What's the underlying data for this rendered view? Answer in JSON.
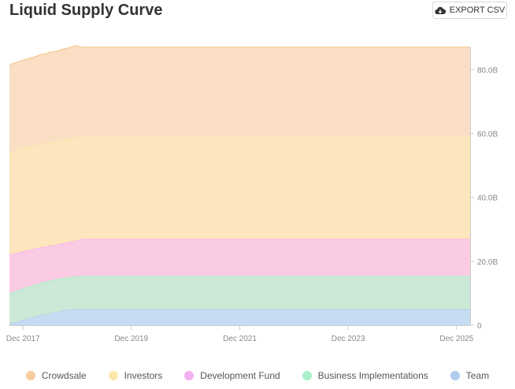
{
  "header": {
    "title": "Liquid Supply Curve",
    "export_label": "EXPORT CSV",
    "export_icon": "cloud-download-icon"
  },
  "chart_data": {
    "type": "area",
    "stacked": true,
    "title": "Liquid Supply Curve",
    "x_unit": "months since 2017-09",
    "x": [
      0,
      1,
      2,
      3,
      4,
      5,
      6,
      7,
      8,
      9,
      10,
      11,
      12,
      13,
      14,
      15,
      16,
      17,
      18,
      19,
      20,
      22,
      24,
      36,
      48,
      60,
      72,
      84,
      96,
      102
    ],
    "x_tick_labels": [
      "Dec 2017",
      "Dec 2019",
      "Dec 2021",
      "Dec 2023",
      "Dec 2025"
    ],
    "x_tick_positions": [
      3,
      27,
      51,
      75,
      99
    ],
    "xlim": [
      0,
      102
    ],
    "ylim": [
      0,
      87
    ],
    "y_ticks": [
      0,
      20,
      40,
      60,
      80
    ],
    "y_tick_labels": [
      "0",
      "20.0B",
      "40.0B",
      "60.0B",
      "80.0B"
    ],
    "y_axis_position": "right",
    "grid": false,
    "legend_position": "bottom",
    "series": [
      {
        "name": "Team",
        "color": "#c5dcf2",
        "legend_color": "#b0cdf0",
        "values": [
          0.5,
          0.8,
          1.2,
          1.6,
          2.0,
          2.4,
          2.8,
          3.1,
          3.4,
          3.7,
          4.0,
          4.3,
          4.6,
          4.8,
          5.0,
          5.0,
          5.0,
          5.0,
          5.0,
          5.0,
          5.0,
          5.0,
          5.0,
          5.0,
          5.0,
          5.0,
          5.0,
          5.0,
          5.0,
          5.0
        ]
      },
      {
        "name": "Business Implementations",
        "color": "#cce8d6",
        "legend_color": "#a9efc8",
        "values": [
          9.5,
          9.7,
          9.8,
          9.9,
          10.0,
          10.0,
          10.1,
          10.2,
          10.2,
          10.3,
          10.3,
          10.3,
          10.2,
          10.2,
          10.2,
          10.3,
          10.5,
          10.5,
          10.5,
          10.5,
          10.5,
          10.5,
          10.5,
          10.5,
          10.5,
          10.5,
          10.5,
          10.5,
          10.5,
          10.5
        ]
      },
      {
        "name": "Development Fund",
        "color": "#fbcbe3",
        "legend_color": "#f2b2ef",
        "values": [
          12.0,
          11.9,
          11.8,
          11.6,
          11.5,
          11.3,
          11.2,
          11.1,
          11.0,
          10.9,
          10.8,
          10.8,
          10.9,
          11.0,
          11.1,
          11.2,
          11.5,
          11.5,
          11.5,
          11.5,
          11.5,
          11.5,
          11.5,
          11.5,
          11.5,
          11.5,
          11.5,
          11.5,
          11.5,
          11.5
        ]
      },
      {
        "name": "Investors",
        "color": "#fde5bd",
        "legend_color": "#fde7ab",
        "values": [
          32.0,
          32.1,
          32.1,
          32.2,
          32.2,
          32.3,
          32.3,
          32.4,
          32.4,
          32.4,
          32.4,
          32.4,
          32.4,
          32.4,
          32.4,
          32.4,
          32.0,
          32.0,
          32.0,
          32.0,
          32.0,
          32.0,
          32.0,
          32.0,
          32.0,
          32.0,
          32.0,
          32.0,
          32.0,
          32.0
        ]
      },
      {
        "name": "Crowdsale",
        "color": "#fadfc5",
        "legend_color": "#f7cd9f",
        "values": [
          27.5,
          27.5,
          27.6,
          27.6,
          27.7,
          27.7,
          27.8,
          27.9,
          28.0,
          28.1,
          28.1,
          28.2,
          28.3,
          28.4,
          28.5,
          28.6,
          28.0,
          28.0,
          28.0,
          28.0,
          28.0,
          28.0,
          28.0,
          28.0,
          28.0,
          28.0,
          28.0,
          28.0,
          28.0,
          28.0
        ]
      }
    ],
    "legend_order": [
      "Crowdsale",
      "Investors",
      "Development Fund",
      "Business Implementations",
      "Team"
    ]
  }
}
